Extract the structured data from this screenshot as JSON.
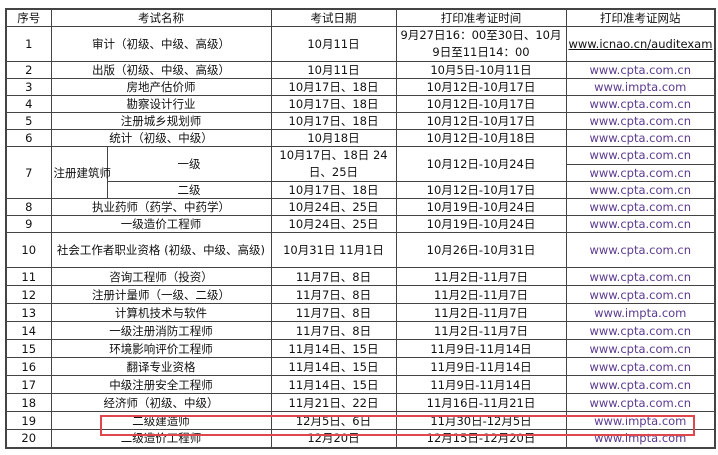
{
  "headers": [
    "序号",
    "考试名称",
    "考试日期",
    "打印准考证时间",
    "打印准考证网站"
  ],
  "rows": [
    {
      "no": "1",
      "name": "审计（初级、中级、高级）",
      "date": "10月11日",
      "print": "9月27日16：00至30日、10月9日至11日14：00",
      "site": "www.icnao.cn/auditexam"
    },
    {
      "no": "2",
      "name": "出版（初级、中级、高级）",
      "date": "10月11日",
      "print": "10月5日-10月11日",
      "site": "www.cpta.com.cn"
    },
    {
      "no": "3",
      "name": "房地产估价师",
      "date": "10月17日、18日",
      "print": "10月12日-10月17日",
      "site": "www.impta.com"
    },
    {
      "no": "4",
      "name": "勘察设计行业",
      "date": "10月17日、18日",
      "print": "10月12日-10月17日",
      "site": "www.cpta.com.cn"
    },
    {
      "no": "5",
      "name": "注册城乡规划师",
      "date": "10月17日、18日",
      "print": "10月12日-10月17日",
      "site": "www.cpta.com.cn"
    },
    {
      "no": "6",
      "name": "统计（初级、中级）",
      "date": "10月18日",
      "print": "10月12日-10月18日",
      "site": "www.cpta.com.cn"
    },
    {
      "no": "7",
      "name": "注册建筑师",
      "sub": [
        {
          "level": "一级",
          "date": "10月17日、18日 24日、25日",
          "print": "10月12日-10月24日",
          "sites": [
            "www.cpta.com.cn",
            "www.cpta.com.cn"
          ]
        },
        {
          "level": "二级",
          "date": "10月17日、18日",
          "print": "10月12日-10月17日",
          "sites": [
            "www.cpta.com.cn"
          ]
        }
      ]
    },
    {
      "no": "8",
      "name": "执业药师（药学、中药学）",
      "date": "10月24日、25日",
      "print": "10月19日-10月24日",
      "site": "www.cpta.com.cn"
    },
    {
      "no": "9",
      "name": "一级造价工程师",
      "date": "10月24日、25日",
      "print": "10月19日-10月24日",
      "site": "www.cpta.com.cn"
    },
    {
      "no": "10",
      "name": "社会工作者职业资格 (初级、中级、高级)",
      "date": "10月31日 11月1日",
      "print": "10月26日-10月31日",
      "site": "www.cpta.com.cn"
    },
    {
      "no": "11",
      "name": "咨询工程师（投资）",
      "date": "11月7日、8日",
      "print": "11月2日-11月7日",
      "site": "www.cpta.com.cn"
    },
    {
      "no": "12",
      "name": "注册计量师（一级、二级）",
      "date": "11月7日、8日",
      "print": "11月2日-11月7日",
      "site": "www.cpta.com.cn"
    },
    {
      "no": "13",
      "name": "计算机技术与软件",
      "date": "11月7日、8日",
      "print": "11月2日-11月7日",
      "site": "www.impta.com"
    },
    {
      "no": "14",
      "name": "一级注册消防工程师",
      "date": "11月7日、8日",
      "print": "11月2日-11月7日",
      "site": "www.cpta.com.cn"
    },
    {
      "no": "15",
      "name": "环境影响评价工程师",
      "date": "11月14日、15日",
      "print": "11月9日-11月14日",
      "site": "www.cpta.com.cn"
    },
    {
      "no": "16",
      "name": "翻译专业资格",
      "date": "11月14日、15日",
      "print": "11月9日-11月14日",
      "site": "www.cpta.com.cn"
    },
    {
      "no": "17",
      "name": "中级注册安全工程师",
      "date": "11月14日、15日",
      "print": "11月9日-11月14日",
      "site": "www.cpta.com.cn"
    },
    {
      "no": "18",
      "name": "经济师（初级、中级）",
      "date": "11月21日、22日",
      "print": "11月16日-11月21日",
      "site": "www.cpta.com.cn"
    },
    {
      "no": "19",
      "name": "二级建造师",
      "date": "12月5日、6日",
      "print": "11月30日-12月5日",
      "site": "www.impta.com",
      "highlighted": true
    },
    {
      "no": "20",
      "name": "二级造价工程师",
      "date": "12月20日",
      "print": "12月15日-12月20日",
      "site": "www.impta.com"
    }
  ],
  "colors": {
    "highlight": "#e0474c",
    "link": "#5b3a8e"
  }
}
